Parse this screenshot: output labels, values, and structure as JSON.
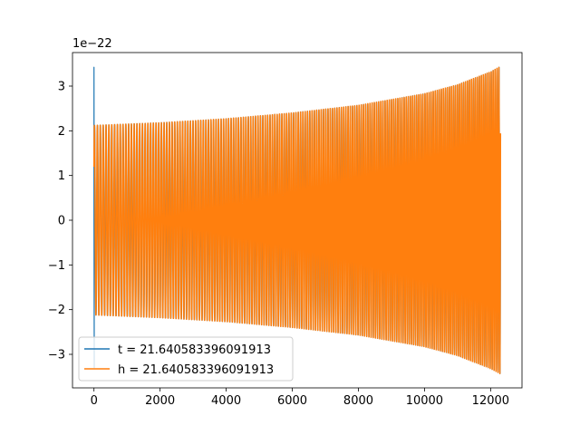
{
  "chart_data": {
    "type": "line",
    "title": "",
    "xlabel": "",
    "ylabel": "",
    "y_offset_label": "1e−22",
    "xlim": [
      -650,
      12950
    ],
    "ylim": [
      -3.75,
      3.75
    ],
    "x_ticks": [
      0,
      2000,
      4000,
      6000,
      8000,
      10000,
      12000
    ],
    "x_tick_labels": [
      "0",
      "2000",
      "4000",
      "6000",
      "8000",
      "10000",
      "12000"
    ],
    "y_ticks": [
      -3,
      -2,
      -1,
      0,
      1,
      2,
      3
    ],
    "y_tick_labels": [
      "−3",
      "−2",
      "−1",
      "0",
      "1",
      "2",
      "3"
    ],
    "grid": false,
    "legend_position": "lower-left",
    "series": [
      {
        "name": "t = 21.640583396091913",
        "color": "#1f77b4",
        "x_range": [
          0,
          12300
        ],
        "spike": {
          "x": 0,
          "max": 3.42,
          "min": -3.3
        },
        "amplitude_envelope": [
          {
            "x": 0,
            "a": 2.12
          },
          {
            "x": 2000,
            "a": 2.18
          },
          {
            "x": 4000,
            "a": 2.27
          },
          {
            "x": 6000,
            "a": 2.4
          },
          {
            "x": 8000,
            "a": 2.57
          },
          {
            "x": 10000,
            "a": 2.83
          },
          {
            "x": 11000,
            "a": 3.03
          },
          {
            "x": 12000,
            "a": 3.32
          },
          {
            "x": 12300,
            "a": 3.44
          }
        ]
      },
      {
        "name": "h = 21.640583396091913",
        "color": "#ff7f0e",
        "x_range": [
          0,
          12300
        ],
        "amplitude_envelope": [
          {
            "x": 0,
            "a": 2.12
          },
          {
            "x": 2000,
            "a": 2.18
          },
          {
            "x": 4000,
            "a": 2.27
          },
          {
            "x": 6000,
            "a": 2.4
          },
          {
            "x": 8000,
            "a": 2.57
          },
          {
            "x": 10000,
            "a": 2.83
          },
          {
            "x": 11000,
            "a": 3.03
          },
          {
            "x": 12000,
            "a": 3.32
          },
          {
            "x": 12300,
            "a": 3.44
          }
        ]
      }
    ]
  }
}
